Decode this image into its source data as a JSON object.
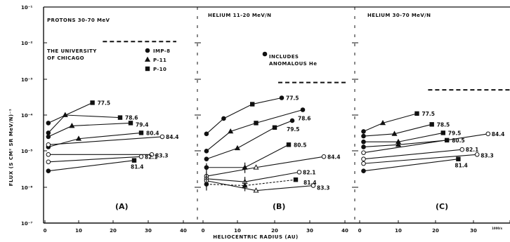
{
  "chart_data": {
    "type": "scatter",
    "y_scale": "log",
    "ylabel": "FLUX (S CM² SR MeV/N)⁻¹",
    "xlabel": "HELIOCENTRIC RADIUS (AU)",
    "y_ticks": [
      "10⁻¹",
      "10⁻²",
      "10⁻³",
      "10⁻⁴",
      "10⁻⁵",
      "10⁻⁶",
      "10⁻⁷"
    ],
    "ylim": [
      1e-07,
      0.1
    ],
    "x_ticks": [
      0,
      10,
      20,
      30,
      40
    ],
    "xlim": [
      0,
      42
    ],
    "corner_note": "1000/s",
    "panels": [
      {
        "title": "PROTONS 30-70 MeV",
        "letter": "(A)",
        "notes": [
          "THE UNIVERSITY",
          "OF CHICAGO"
        ],
        "legend": [
          {
            "label": "IMP-8",
            "marker": "circle"
          },
          {
            "label": "P-11",
            "marker": "triangle"
          },
          {
            "label": "P-10",
            "marker": "square"
          }
        ],
        "dashed_level": {
          "value": 0.011,
          "x_range": [
            17,
            38
          ]
        },
        "series": [
          {
            "label": "77.5",
            "points": [
              {
                "x": 1,
                "y": 6e-05,
                "m": "filled-circle"
              },
              {
                "x": 14,
                "y": 0.00022,
                "m": "filled-square"
              }
            ]
          },
          {
            "label": "78.6",
            "points": [
              {
                "x": 1,
                "y": 3.2e-05,
                "m": "filled-circle"
              },
              {
                "x": 6,
                "y": 0.0001,
                "m": "filled-triangle"
              },
              {
                "x": 22,
                "y": 8.5e-05,
                "m": "filled-square"
              }
            ]
          },
          {
            "label": "79.4",
            "points": [
              {
                "x": 1,
                "y": 2.5e-05,
                "m": "filled-circle"
              },
              {
                "x": 8,
                "y": 5e-05,
                "m": "filled-triangle"
              },
              {
                "x": 25,
                "y": 6e-05,
                "m": "filled-square"
              }
            ]
          },
          {
            "label": "80.4",
            "points": [
              {
                "x": 1,
                "y": 1.3e-05,
                "m": "filled-circle"
              },
              {
                "x": 10,
                "y": 2.2e-05,
                "m": "filled-triangle"
              },
              {
                "x": 28,
                "y": 3.2e-05,
                "m": "filled-square"
              }
            ]
          },
          {
            "label": "84.4",
            "points": [
              {
                "x": 1,
                "y": 1.5e-05,
                "m": "open-circle"
              },
              {
                "x": 34,
                "y": 2.5e-05,
                "m": "open-circle"
              }
            ]
          },
          {
            "label": "83.3",
            "points": [
              {
                "x": 1,
                "y": 8e-06,
                "m": "open-circle"
              },
              {
                "x": 31,
                "y": 8e-06,
                "m": "open-circle"
              }
            ]
          },
          {
            "label": "82.1",
            "points": [
              {
                "x": 1,
                "y": 5e-06,
                "m": "open-circle"
              },
              {
                "x": 28,
                "y": 7e-06,
                "m": "open-circle"
              }
            ]
          },
          {
            "label": "81.4",
            "points": [
              {
                "x": 1,
                "y": 2.8e-06,
                "m": "filled-circle"
              },
              {
                "x": 26,
                "y": 5.5e-06,
                "m": "filled-square"
              }
            ]
          }
        ]
      },
      {
        "title": "HELIUM 11-20 MeV/N",
        "letter": "(B)",
        "notes": [
          "INCLUDES",
          "ANOMALOUS He"
        ],
        "dashed_level": {
          "value": 0.0008,
          "x_range": [
            21,
            41
          ]
        },
        "series": [
          {
            "label": "77.5",
            "points": [
              {
                "x": 1,
                "y": 3e-05,
                "m": "filled-circle"
              },
              {
                "x": 6,
                "y": 8e-05,
                "m": "filled-circle"
              },
              {
                "x": 14,
                "y": 0.0002,
                "m": "filled-square"
              },
              {
                "x": 22,
                "y": 0.0003,
                "m": "filled-circle"
              }
            ]
          },
          {
            "label": "78.6",
            "points": [
              {
                "x": 1,
                "y": 1e-05,
                "m": "filled-circle"
              },
              {
                "x": 8,
                "y": 3.5e-05,
                "m": "filled-triangle"
              },
              {
                "x": 15,
                "y": 6e-05,
                "m": "filled-square"
              },
              {
                "x": 28,
                "y": 0.00014,
                "m": "filled-circle"
              }
            ]
          },
          {
            "label": "79.5",
            "points": [
              {
                "x": 1,
                "y": 6e-06,
                "m": "filled-circle"
              },
              {
                "x": 10,
                "y": 1.2e-05,
                "m": "filled-triangle"
              },
              {
                "x": 20,
                "y": 4.5e-05,
                "m": "filled-square"
              },
              {
                "x": 25,
                "y": 7e-05,
                "m": "filled-circle"
              }
            ]
          },
          {
            "label": "80.5",
            "points": [
              {
                "x": 1,
                "y": 3.5e-06,
                "m": "filled-circle"
              },
              {
                "x": 12,
                "y": 3.5e-06,
                "m": "filled-triangle"
              },
              {
                "x": 24,
                "y": 1.5e-05,
                "m": "filled-square"
              }
            ]
          },
          {
            "label": "84.4",
            "points": [
              {
                "x": 1,
                "y": 2e-06,
                "m": "open-circle"
              },
              {
                "x": 15,
                "y": 3.5e-06,
                "m": "open-triangle"
              },
              {
                "x": 34,
                "y": 7e-06,
                "m": "open-circle"
              }
            ]
          },
          {
            "label": "82.1",
            "points": [
              {
                "x": 1,
                "y": 1.7e-06,
                "m": "open-circle"
              },
              {
                "x": 12,
                "y": 1.4e-06,
                "m": "open-triangle"
              },
              {
                "x": 27,
                "y": 2.6e-06,
                "m": "open-circle"
              }
            ]
          },
          {
            "label": "81.4",
            "points": [
              {
                "x": 1,
                "y": 1.2e-06,
                "m": "filled-circle"
              },
              {
                "x": 12,
                "y": 1.1e-06,
                "m": "filled-triangle"
              },
              {
                "x": 26,
                "y": 1.6e-06,
                "m": "filled-square"
              }
            ]
          },
          {
            "label": "83.3",
            "points": [
              {
                "x": 1,
                "y": 1.5e-06,
                "m": "open-circle"
              },
              {
                "x": 15,
                "y": 8e-07,
                "m": "open-triangle"
              },
              {
                "x": 31,
                "y": 1.1e-06,
                "m": "open-circle"
              }
            ]
          }
        ]
      },
      {
        "title": "HELIUM 30-70 MeV/N",
        "letter": "(C)",
        "notes": [],
        "dashed_level": {
          "value": 0.0005,
          "x_range": [
            18,
            41
          ]
        },
        "series": [
          {
            "label": "77.5",
            "points": [
              {
                "x": 1,
                "y": 3.5e-05,
                "m": "filled-circle"
              },
              {
                "x": 6,
                "y": 6e-05,
                "m": "filled-triangle"
              },
              {
                "x": 15,
                "y": 0.00011,
                "m": "filled-square"
              }
            ]
          },
          {
            "label": "78.5",
            "points": [
              {
                "x": 1,
                "y": 2.6e-05,
                "m": "filled-circle"
              },
              {
                "x": 9,
                "y": 3e-05,
                "m": "filled-triangle"
              },
              {
                "x": 19,
                "y": 5.5e-05,
                "m": "filled-square"
              }
            ]
          },
          {
            "label": "79.5",
            "points": [
              {
                "x": 1,
                "y": 1.8e-05,
                "m": "filled-circle"
              },
              {
                "x": 10,
                "y": 1.8e-05,
                "m": "filled-triangle"
              },
              {
                "x": 22,
                "y": 3.2e-05,
                "m": "filled-square"
              }
            ]
          },
          {
            "label": "80.5",
            "points": [
              {
                "x": 1,
                "y": 1.3e-05,
                "m": "filled-circle"
              },
              {
                "x": 10,
                "y": 1.5e-05,
                "m": "filled-triangle"
              },
              {
                "x": 23,
                "y": 2e-05,
                "m": "filled-square"
              }
            ]
          },
          {
            "label": "84.4",
            "points": [
              {
                "x": 1,
                "y": 9e-06,
                "m": "open-circle"
              },
              {
                "x": 34,
                "y": 3e-05,
                "m": "open-circle"
              }
            ]
          },
          {
            "label": "82.1",
            "points": [
              {
                "x": 1,
                "y": 6e-06,
                "m": "open-circle"
              },
              {
                "x": 27,
                "y": 1.1e-05,
                "m": "open-circle"
              }
            ]
          },
          {
            "label": "83.3",
            "points": [
              {
                "x": 1,
                "y": 4.5e-06,
                "m": "open-circle"
              },
              {
                "x": 31,
                "y": 8e-06,
                "m": "open-circle"
              }
            ]
          },
          {
            "label": "81.4",
            "points": [
              {
                "x": 1,
                "y": 2.8e-06,
                "m": "filled-circle"
              },
              {
                "x": 26,
                "y": 6e-06,
                "m": "filled-square"
              }
            ]
          }
        ]
      }
    ]
  }
}
